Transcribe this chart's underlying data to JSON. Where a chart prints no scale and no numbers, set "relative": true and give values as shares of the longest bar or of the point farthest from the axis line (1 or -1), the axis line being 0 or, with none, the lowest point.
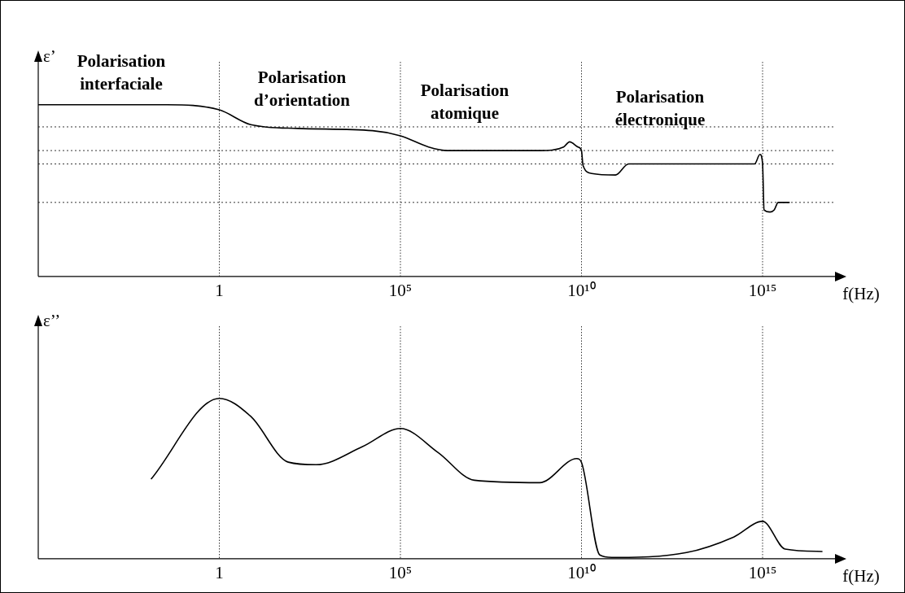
{
  "chart_data": [
    {
      "type": "line",
      "relative": true,
      "ylabel": "ε’",
      "xlabel": "f(Hz)",
      "log": "x",
      "grid": "x",
      "legend": false,
      "marker": "none",
      "line_style": "solid",
      "xlim": [
        1e-05,
        1e+17
      ],
      "xticks": [
        {
          "value": 1,
          "label": "1"
        },
        {
          "value": 100000,
          "label": "10⁵"
        },
        {
          "value": 10000000000.0,
          "label": "10¹⁰"
        },
        {
          "value": 1000000000000000.0,
          "label": "10¹⁵"
        }
      ],
      "annotations": [
        "Polarisation\ninterfaciale",
        "Polarisation\nd’orientation",
        "Polarisation\natomique",
        "Polarisation\nélectronique"
      ],
      "ref_lines": [
        {
          "axis": "y",
          "value": 0.871
        },
        {
          "axis": "y",
          "value": 0.733
        },
        {
          "axis": "y",
          "value": 0.655
        },
        {
          "axis": "y",
          "value": 0.431
        }
      ],
      "series": [
        {
          "color": "#000000",
          "x": [
            1e-05,
            0.036,
            1,
            7.4,
            145,
            17000,
            100000,
            600000,
            2000000,
            740000000,
            3200000000,
            4700000000,
            8000000000,
            10000000000.0,
            11000000000.0,
            19000000000.0,
            87000000000.0,
            200000000000.0,
            600000000000000.0,
            850000000000000.0,
            1000000000000000.0,
            1100000000000000.0,
            1600000000000000.0,
            2100000000000000.0,
            2700000000000000.0,
            5600000000000000.0
          ],
          "values": [
            1,
            1,
            0.97,
            0.884,
            0.862,
            0.849,
            0.819,
            0.754,
            0.733,
            0.733,
            0.754,
            0.784,
            0.754,
            0.733,
            0.647,
            0.6,
            0.591,
            0.655,
            0.655,
            0.711,
            0.655,
            0.388,
            0.375,
            0.388,
            0.431,
            0.431
          ]
        }
      ]
    },
    {
      "type": "line",
      "relative": true,
      "ylabel": "ε’’",
      "xlabel": "f(Hz)",
      "log": "x",
      "grid": "x",
      "legend": false,
      "marker": "none",
      "line_style": "solid",
      "xlim": [
        1e-05,
        1e+17
      ],
      "xticks": [
        {
          "value": 1,
          "label": "1"
        },
        {
          "value": 100000,
          "label": "10⁵"
        },
        {
          "value": 10000000000.0,
          "label": "10¹⁰"
        },
        {
          "value": 1000000000000000.0,
          "label": "10¹⁵"
        }
      ],
      "series": [
        {
          "color": "#000000",
          "x": [
            0.013,
            1,
            7.4,
            80,
            470,
            9000,
            100000,
            1100000,
            11000000,
            700000000,
            7400000000,
            10000000000.0,
            32000000000.0,
            69000000000.0,
            7900000000000.0,
            160000000000000.0,
            1000000000000000.0,
            4200000000000000.0,
            4.5e+16
          ],
          "values": [
            0.496,
            1,
            0.887,
            0.602,
            0.586,
            0.699,
            0.812,
            0.662,
            0.489,
            0.474,
            0.624,
            0.6,
            0.023,
            0.008,
            0.038,
            0.135,
            0.233,
            0.06,
            0.045
          ]
        }
      ]
    }
  ]
}
